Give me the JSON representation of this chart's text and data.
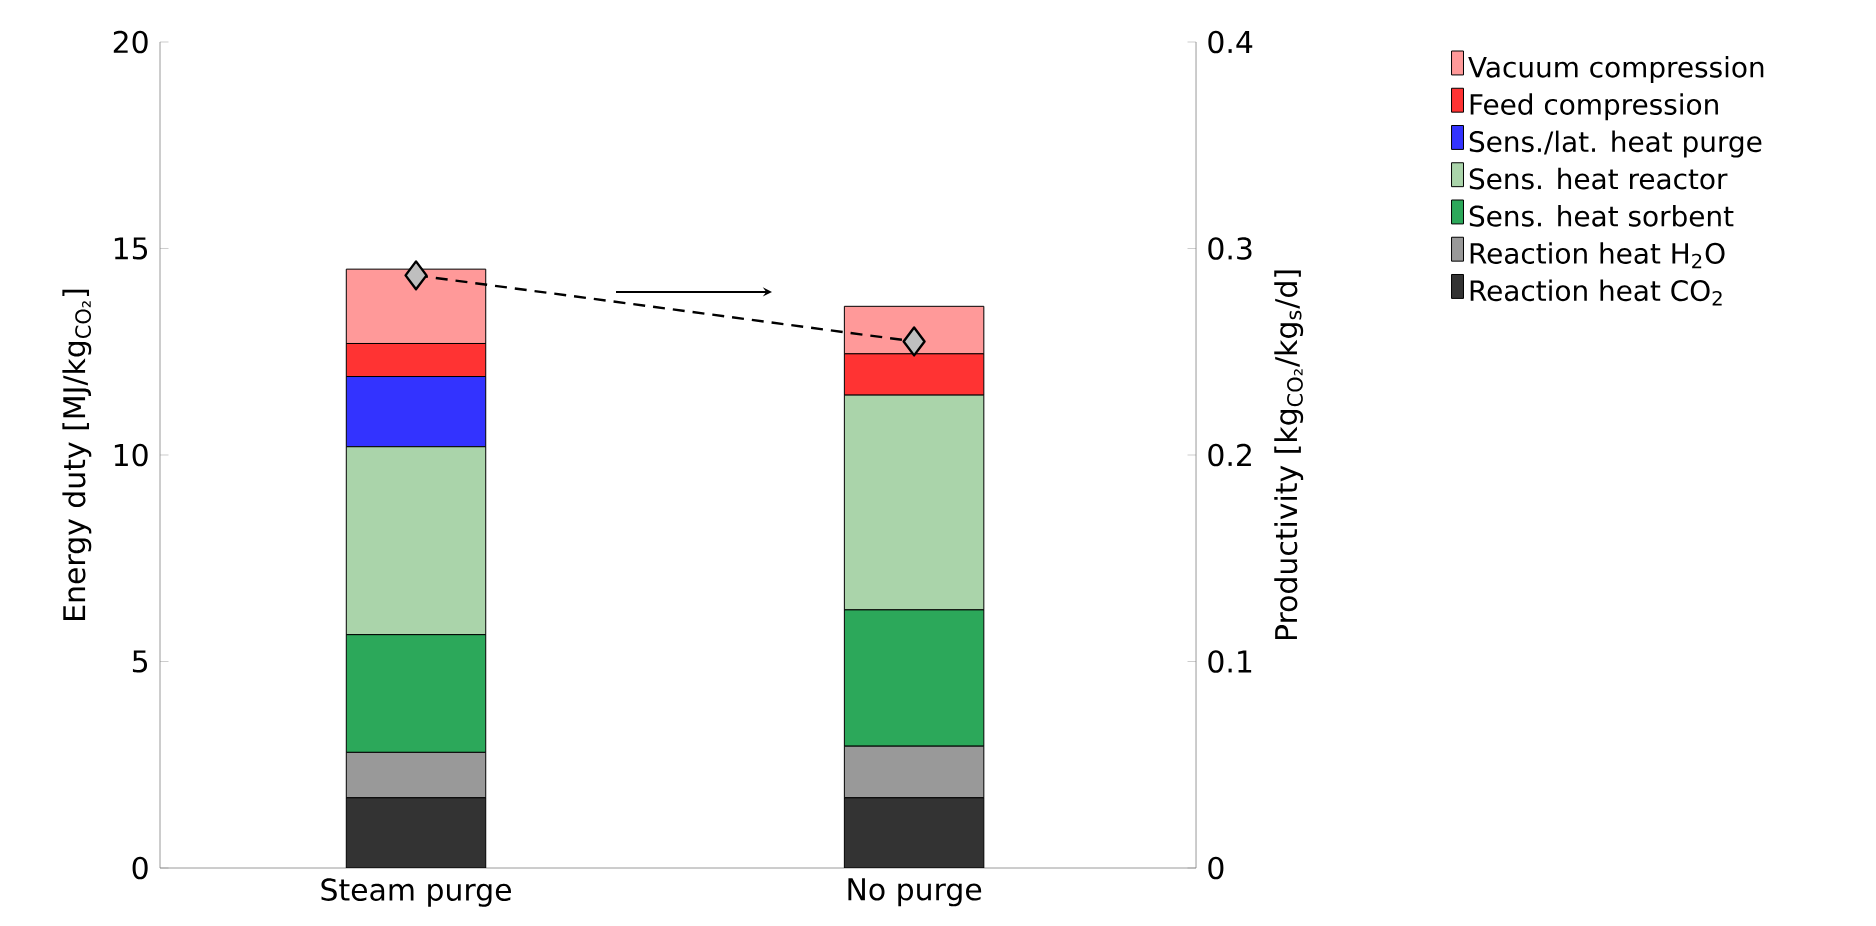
{
  "chart_data": {
    "type": "bar",
    "stacked": true,
    "categories": [
      "Steam purge",
      "No purge"
    ],
    "ylabel": "Energy duty [MJ/kg$_{CO₂}$]",
    "y2label": "Productivity [kg$_{CO₂}$/kg$_{s}$/d]",
    "ylim": [
      0,
      20
    ],
    "yticks": [
      0,
      5,
      10,
      15,
      20
    ],
    "y2lim": [
      0,
      0.4
    ],
    "y2ticks": [
      0,
      0.1,
      0.2,
      0.3,
      0.4
    ],
    "grid": false,
    "legend": "right",
    "series": [
      {
        "name": "Reaction heat CO$_{2}$",
        "color": "#333333",
        "values": [
          1.7,
          1.7
        ]
      },
      {
        "name": "Reaction heat H$_{2}$O",
        "color": "#999999",
        "values": [
          1.1,
          1.25
        ]
      },
      {
        "name": "Sens. heat sorbent",
        "color": "#2ca85a",
        "values": [
          2.85,
          3.3
        ]
      },
      {
        "name": "Sens. heat reactor",
        "color": "#aad4aa",
        "values": [
          4.55,
          5.2
        ]
      },
      {
        "name": "Sens./lat. heat purge",
        "color": "#3333ff",
        "values": [
          1.7,
          0
        ]
      },
      {
        "name": "Feed compression",
        "color": "#ff3333",
        "values": [
          0.8,
          1.0
        ]
      },
      {
        "name": "Vacuum compression",
        "color": "#ff9999",
        "values": [
          1.8,
          1.15
        ]
      },
      {
        "type": "line",
        "axis": "y2",
        "color": "#000000",
        "marker": "diamond",
        "line_style": "dashed",
        "values": [
          0.287,
          0.255
        ]
      }
    ]
  }
}
